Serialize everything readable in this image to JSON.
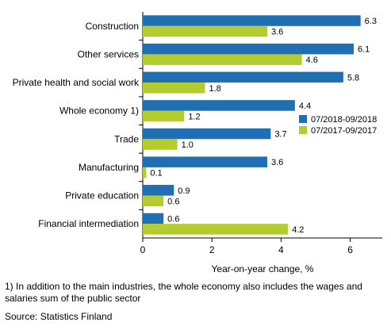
{
  "chart_data": {
    "type": "bar",
    "orientation": "horizontal",
    "categories": [
      "Construction",
      "Other services",
      "Private health and social work",
      "Whole economy 1)",
      "Trade",
      "Manufacturing",
      "Private education",
      "Financial intermediation"
    ],
    "series": [
      {
        "name": "07/2018-09/2018",
        "color": "#1f6fb2",
        "values": [
          6.3,
          6.1,
          5.8,
          4.4,
          3.7,
          3.6,
          0.9,
          0.6
        ]
      },
      {
        "name": "07/2017-09/2017",
        "color": "#b5cc2e",
        "values": [
          3.6,
          4.6,
          1.8,
          1.2,
          1.0,
          0.1,
          0.6,
          4.2
        ]
      }
    ],
    "value_labels": [
      [
        "6.3",
        "6.1",
        "5.8",
        "4.4",
        "3.7",
        "3.6",
        "0.9",
        "0.6"
      ],
      [
        "3.6",
        "4.6",
        "1.8",
        "1.2",
        "1.0",
        "0.1",
        "0.6",
        "4.2"
      ]
    ],
    "xlim": [
      0,
      7
    ],
    "xticks": [
      "0",
      "2",
      "4",
      "6"
    ],
    "xlabel": "Year-on-year change, %",
    "legend_position": "right"
  },
  "footnote": "1) In addition to the main industries, the whole economy also includes the wages and salaries sum of the public sector",
  "source": "Source: Statistics Finland"
}
